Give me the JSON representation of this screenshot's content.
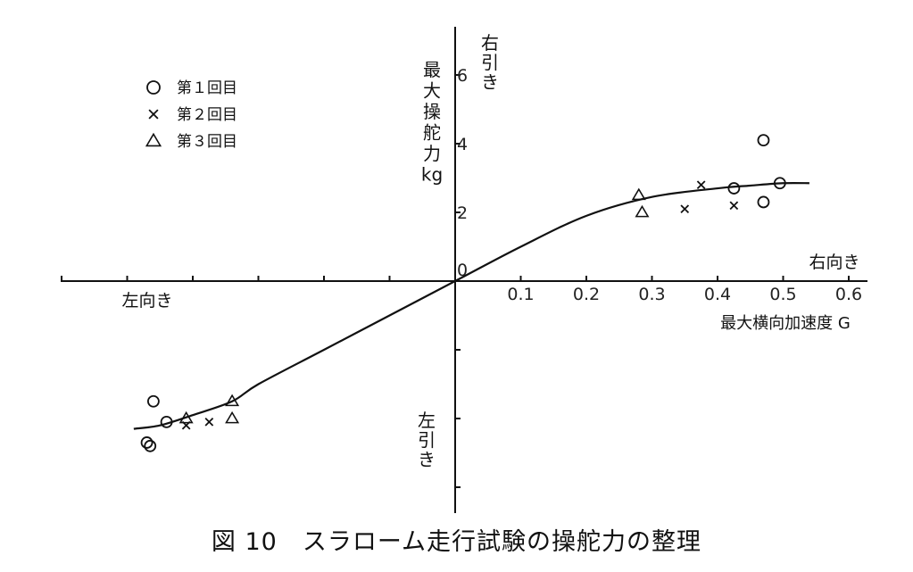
{
  "caption": "図 10　スラローム走行試験の操舵力の整理",
  "chart_data": {
    "type": "scatter",
    "xlabel": "最大横向加速度 G",
    "ylabel": "最大操舵力 kg",
    "x_pos_label": "右向き",
    "x_neg_label": "左向き",
    "y_pos_label": "右引き",
    "y_neg_label": "左引き",
    "xlim": [
      -0.6,
      0.6
    ],
    "ylim": [
      -6.5,
      7.5
    ],
    "x_ticks": [
      0.1,
      0.2,
      0.3,
      0.4,
      0.5,
      0.6
    ],
    "x_tick_labels": [
      "0.1",
      "0.2",
      "0.3",
      "0.4",
      "0.5",
      "0.6"
    ],
    "y_ticks": [
      0,
      2,
      4,
      6
    ],
    "y_tick_labels": [
      "0",
      "2",
      "4",
      "6"
    ],
    "grid": false,
    "legend_position": "top-left",
    "series": [
      {
        "name": "第１回目",
        "marker": "circle",
        "points": [
          {
            "x": 0.47,
            "y": 4.1
          },
          {
            "x": 0.425,
            "y": 2.7
          },
          {
            "x": 0.47,
            "y": 2.3
          },
          {
            "x": 0.495,
            "y": 2.85
          },
          {
            "x": -0.46,
            "y": -3.5
          },
          {
            "x": -0.44,
            "y": -4.1
          },
          {
            "x": -0.47,
            "y": -4.7
          },
          {
            "x": -0.465,
            "y": -4.8
          }
        ]
      },
      {
        "name": "第２回目",
        "marker": "x",
        "points": [
          {
            "x": 0.375,
            "y": 2.8
          },
          {
            "x": 0.35,
            "y": 2.1
          },
          {
            "x": 0.425,
            "y": 2.2
          },
          {
            "x": -0.41,
            "y": -4.2
          },
          {
            "x": -0.375,
            "y": -4.1
          }
        ]
      },
      {
        "name": "第３回目",
        "marker": "triangle",
        "points": [
          {
            "x": 0.28,
            "y": 2.5
          },
          {
            "x": 0.285,
            "y": 2.0
          },
          {
            "x": -0.34,
            "y": -3.5
          },
          {
            "x": -0.34,
            "y": -4.0
          },
          {
            "x": -0.41,
            "y": -4.0
          }
        ]
      }
    ],
    "curve": {
      "x": [
        -0.49,
        -0.45,
        -0.4,
        -0.34,
        -0.3,
        -0.2,
        -0.1,
        0.0,
        0.1,
        0.2,
        0.3,
        0.4,
        0.45,
        0.5,
        0.54
      ],
      "y": [
        -4.3,
        -4.2,
        -3.9,
        -3.5,
        -3.0,
        -2.0,
        -1.0,
        0.0,
        1.0,
        1.9,
        2.45,
        2.7,
        2.78,
        2.85,
        2.85
      ]
    }
  }
}
